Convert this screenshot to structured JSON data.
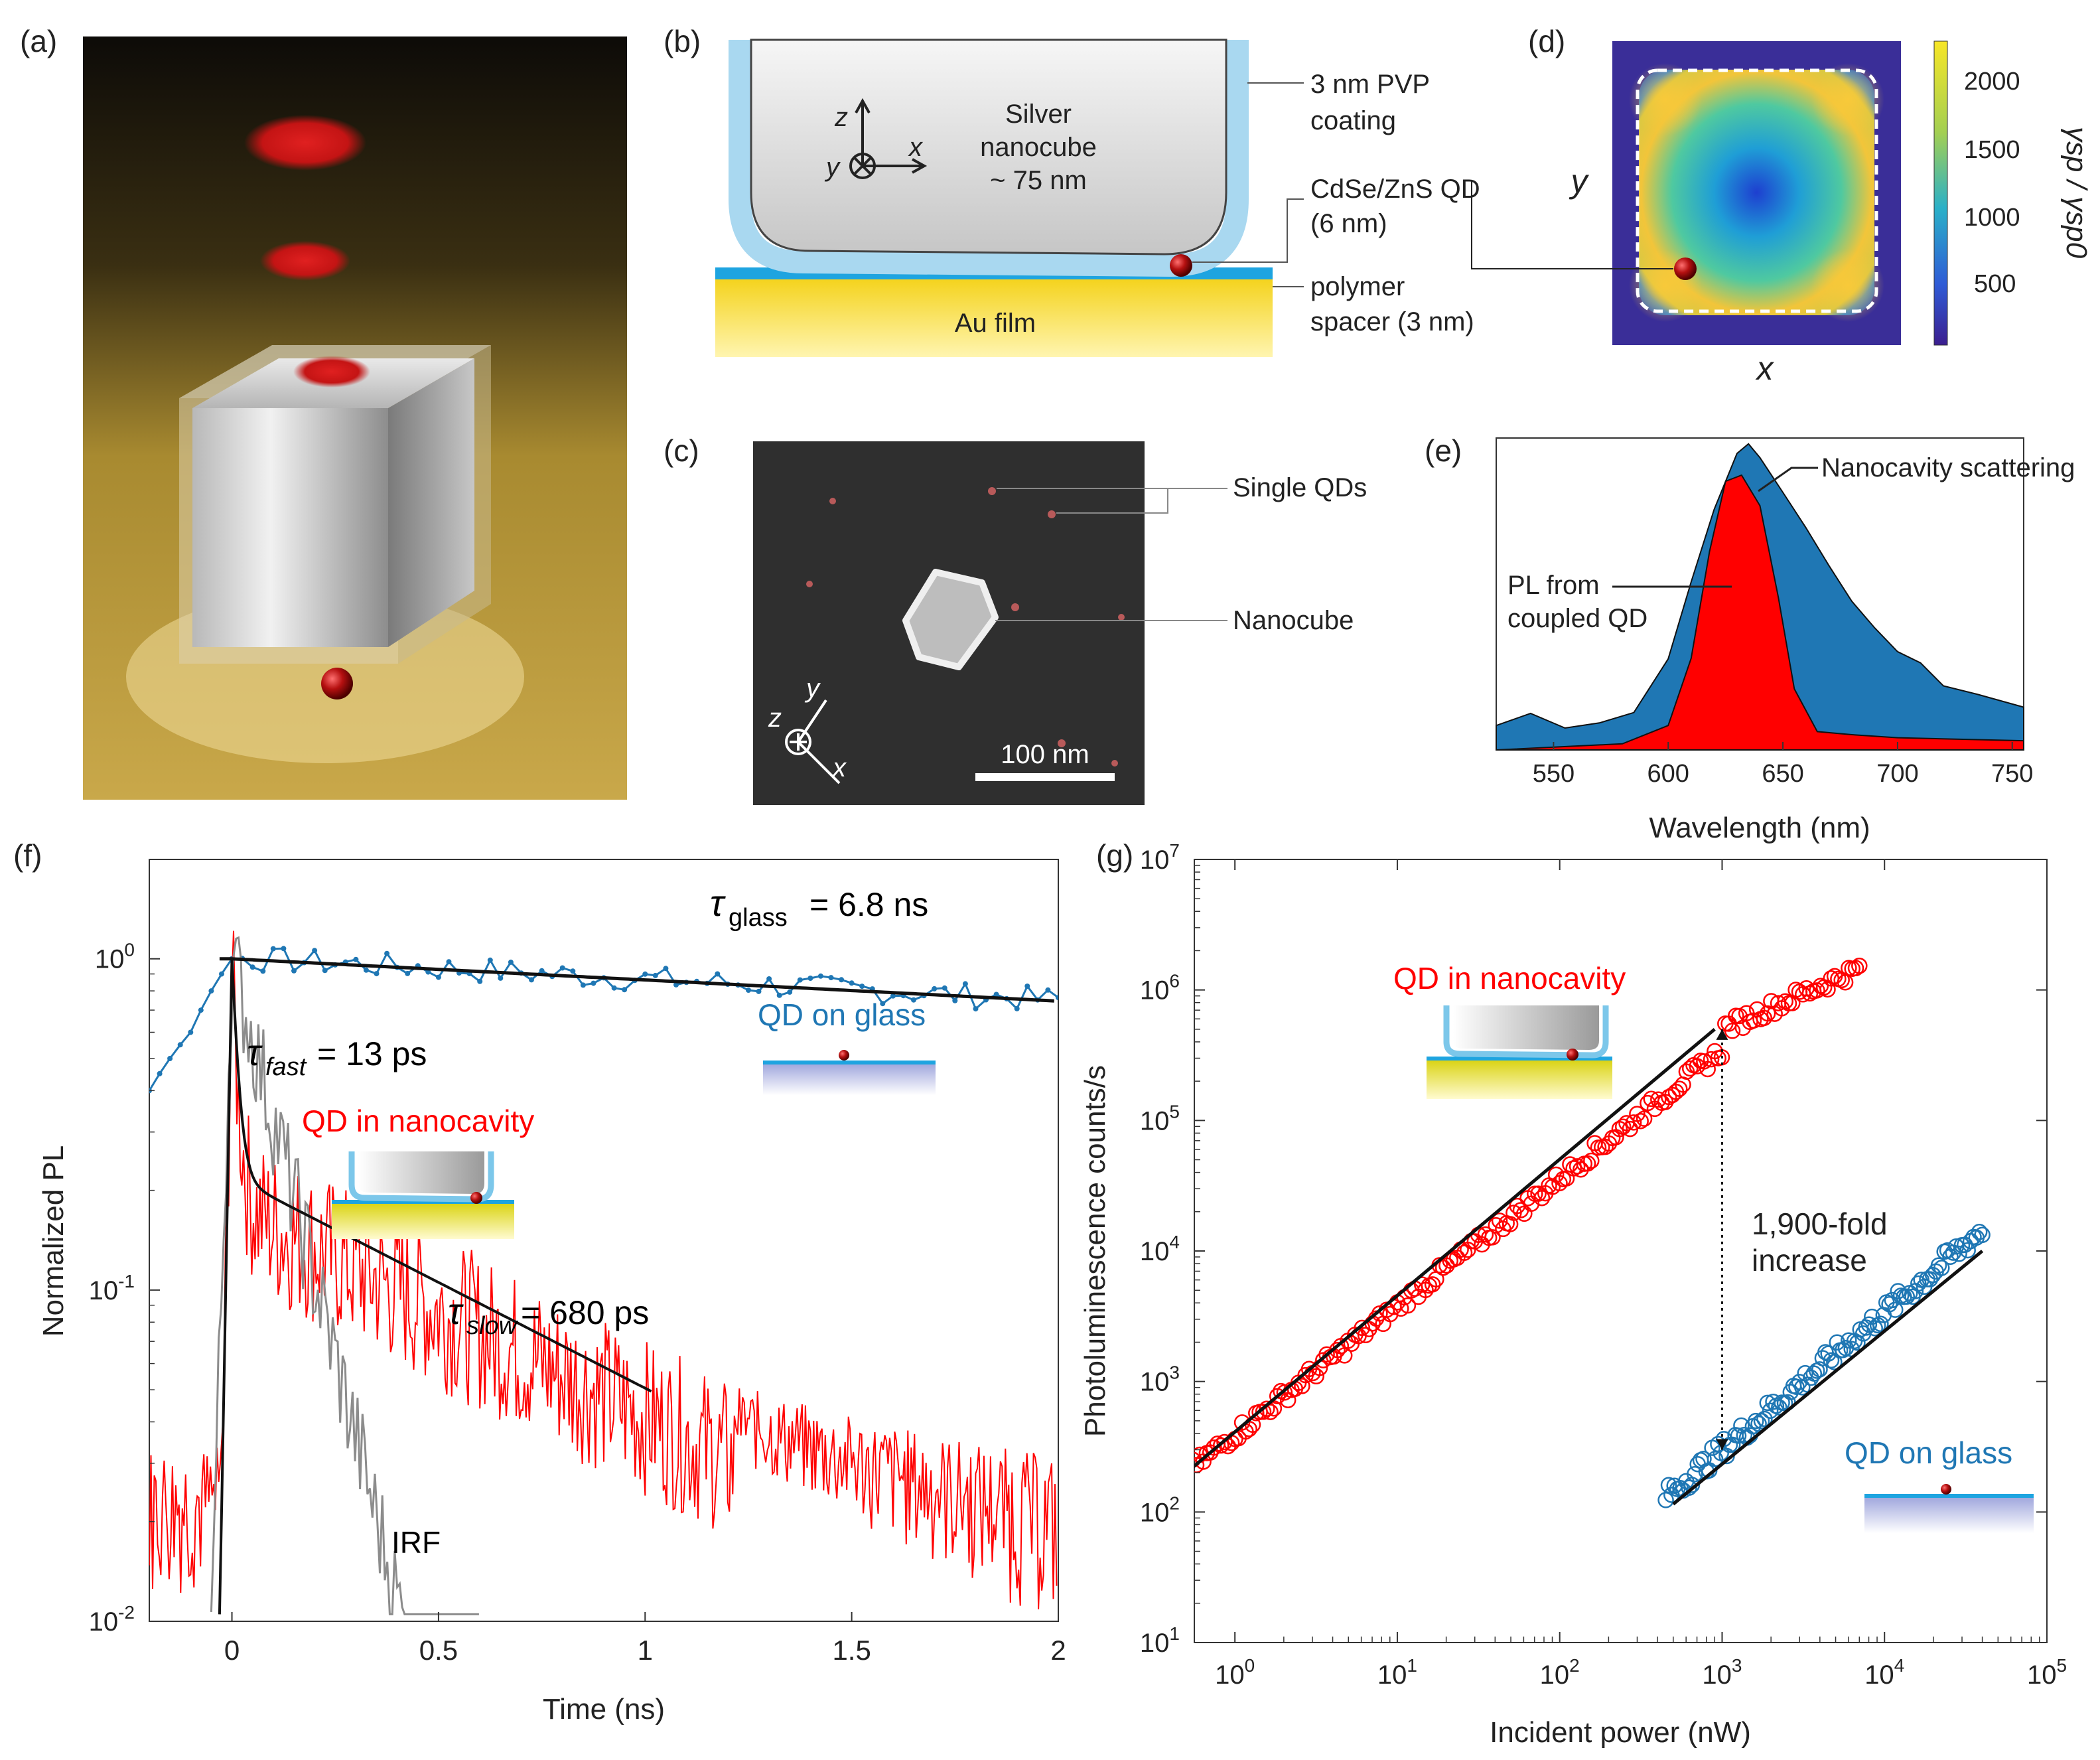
{
  "panel_labels": [
    "(a)",
    "(b)",
    "(c)",
    "(d)",
    "(e)",
    "(f)",
    "(g)"
  ],
  "colors": {
    "red": "#e01010",
    "blue": "#1f77b4",
    "grey": "#8c8c8c",
    "coating": "#a9d8f0",
    "gold": "#f2d21c"
  },
  "panel_b": {
    "silver_label_1": "Silver",
    "silver_label_2": "nanocube",
    "silver_label_3": "~ 75 nm",
    "coating_label_1": "3 nm PVP",
    "coating_label_2": "coating",
    "qd_label_1": "CdSe/ZnS QD",
    "qd_label_2": "(6 nm)",
    "spacer_label_1": "polymer",
    "spacer_label_2": "spacer (3 nm)",
    "au_label": "Au film",
    "axis_z": "z",
    "axis_x": "x",
    "axis_y": "y"
  },
  "panel_c": {
    "single_qds": "Single QDs",
    "nanocube": "Nanocube",
    "scalebar": "100 nm",
    "axis_z": "z",
    "axis_y": "y",
    "axis_x": "x"
  },
  "panel_d": {
    "axis_x": "x",
    "axis_y": "y",
    "colorbar_label": "γsp / γsp0",
    "colorbar_ticks": [
      "2000",
      "1500",
      "1000",
      "500"
    ]
  },
  "panel_g_insets": {
    "cavity": "QD in nanocavity",
    "glass": "QD on glass"
  },
  "chart_data": [
    {
      "type": "area",
      "id": "e",
      "xlabel": "Wavelength (nm)",
      "xlim": [
        525,
        755
      ],
      "xticks": [
        550,
        600,
        650,
        700,
        750
      ],
      "series": [
        {
          "name": "Nanocavity scattering",
          "color": "#1f77b4",
          "x": [
            525,
            540,
            555,
            570,
            585,
            600,
            610,
            620,
            630,
            635,
            640,
            650,
            660,
            670,
            680,
            690,
            700,
            710,
            720,
            735,
            755
          ],
          "y": [
            0.08,
            0.12,
            0.07,
            0.1,
            0.13,
            0.3,
            0.55,
            0.8,
            0.96,
            1.0,
            0.96,
            0.85,
            0.72,
            0.6,
            0.5,
            0.4,
            0.33,
            0.28,
            0.22,
            0.18,
            0.14
          ]
        },
        {
          "name": "PL from coupled QD",
          "color": "#ff0000",
          "x": [
            525,
            580,
            600,
            610,
            618,
            625,
            632,
            640,
            648,
            655,
            665,
            680,
            700,
            755
          ],
          "y": [
            0.0,
            0.02,
            0.08,
            0.3,
            0.65,
            0.88,
            0.9,
            0.8,
            0.5,
            0.2,
            0.06,
            0.05,
            0.04,
            0.03
          ]
        }
      ],
      "annotations": [
        "Nanocavity scattering",
        "PL from",
        "coupled QD"
      ]
    },
    {
      "type": "line",
      "id": "f",
      "xlabel": "Time (ns)",
      "ylabel": "Normalized PL",
      "xlim": [
        -0.2,
        2.0
      ],
      "ylim_log10": [
        -2,
        0.3
      ],
      "xticks": [
        "0",
        "0.5",
        "1",
        "1.5",
        "2"
      ],
      "yticks": [
        "10-2",
        "10-1",
        "100"
      ],
      "series": [
        {
          "name": "QD on glass",
          "color": "#1f77b4",
          "fit_tau_ns": 6.8
        },
        {
          "name": "QD in nanocavity",
          "color": "#ff0000",
          "fit_tau_fast_ps": 13,
          "fit_tau_slow_ps": 680
        },
        {
          "name": "IRF",
          "color": "#8c8c8c"
        }
      ],
      "annotations": {
        "tau_glass_sym": "τ",
        "tau_glass_sub": "glass",
        "tau_glass_val": "= 6.8 ns",
        "tau_fast_sym": "τ",
        "tau_fast_sub": "fast",
        "tau_fast_val": "= 13 ps",
        "tau_slow_sym": "τ",
        "tau_slow_sub": "slow",
        "tau_slow_val": " = 680 ps",
        "qd_glass": "QD on glass",
        "qd_cavity": "QD in nanocavity",
        "irf": "IRF"
      }
    },
    {
      "type": "scatter",
      "id": "g",
      "xlabel": "Incident power (nW)",
      "ylabel": "Photoluminescence counts/s",
      "xscale": "log",
      "yscale": "log",
      "xlim_log10": [
        -0.25,
        5
      ],
      "ylim_log10": [
        1,
        7
      ],
      "xticks": [
        "10^0",
        "10^1",
        "10^2",
        "10^3",
        "10^4",
        "10^5"
      ],
      "yticks": [
        "10^1",
        "10^2",
        "10^3",
        "10^4",
        "10^5",
        "10^6",
        "10^7"
      ],
      "series": [
        {
          "name": "QD in nanocavity",
          "color": "#ff0000",
          "x_range_nW": [
            0.55,
            7000
          ],
          "fit": {
            "x": [
              0.55,
              900
            ],
            "y": [
              220,
              500000
            ]
          }
        },
        {
          "name": "QD on glass",
          "color": "#1f77b4",
          "x_range_nW": [
            450,
            40000
          ],
          "fit": {
            "x": [
              500,
              40000
            ],
            "y": [
              115,
              10000
            ]
          }
        }
      ],
      "annotations": {
        "fold_1": "1,900-fold",
        "fold_2": "increase"
      }
    }
  ]
}
